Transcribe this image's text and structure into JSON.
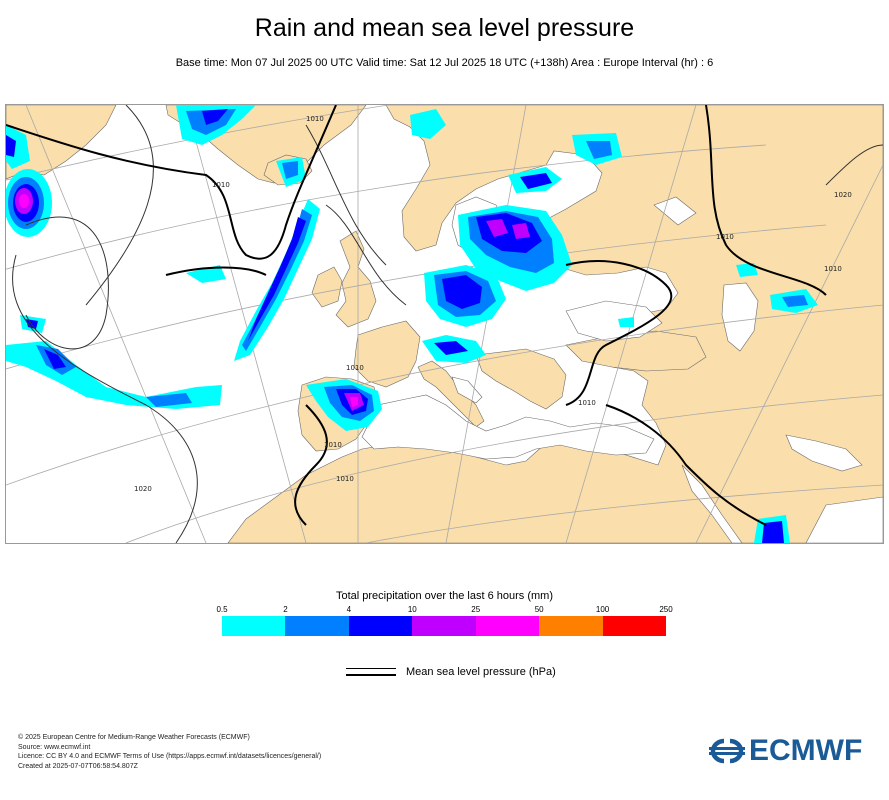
{
  "header": {
    "title": "Rain and mean sea level pressure",
    "subtitle": "Base time: Mon 07 Jul 2025 00 UTC Valid time: Sat 12 Jul 2025 18 UTC (+138h) Area : Europe Interval (hr) : 6"
  },
  "map": {
    "isobar_labels": [
      "1010",
      "1010",
      "1010",
      "1010",
      "1010",
      "1010",
      "1010",
      "1020",
      "1020",
      "1010"
    ],
    "colors": {
      "land": "#fadeab",
      "sea": "#ffffff",
      "graticule": "#a9a9a9",
      "border": "#555555",
      "isobar": "#333333",
      "isobar_1010": "#000000"
    }
  },
  "legend": {
    "title": "Total precipitation over the last 6 hours (mm)",
    "ticks": [
      "0.5",
      "2",
      "4",
      "10",
      "25",
      "50",
      "100",
      "250"
    ],
    "colors": [
      "#00ffff",
      "#0080ff",
      "#0000ff",
      "#c000ff",
      "#ff00ff",
      "#ff8000",
      "#ff0000"
    ],
    "mslp_label": "Mean sea level pressure (hPa)"
  },
  "footer": {
    "lines": [
      "© 2025 European Centre for Medium-Range Weather Forecasts (ECMWF)",
      "Source: www.ecmwf.int",
      "Licence: CC BY 4.0 and ECMWF Terms of Use (https://apps.ecmwf.int/datasets/licences/general/)",
      "Created at 2025-07-07T06:58:54.807Z"
    ]
  },
  "logo": {
    "text": "ECMWF",
    "color": "#1a5a96",
    "icon": "ecmwf-logo-icon"
  }
}
